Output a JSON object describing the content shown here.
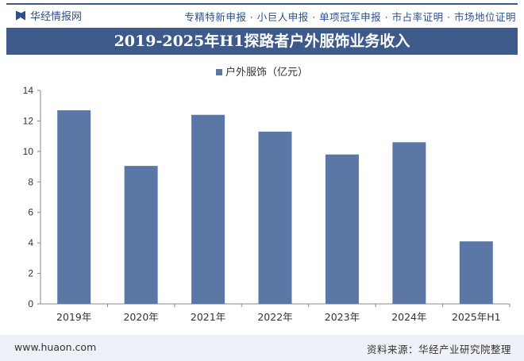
{
  "header": {
    "brand": "华经情报网",
    "services": "专精特新申报 · 小巨人申报 · 单项冠军申报 · 市占率证明 · 市场地位证明"
  },
  "footer": {
    "website": "www.huaon.com",
    "source": "资料来源：华经产业研究院整理"
  },
  "colors": {
    "bar": "#5b77a5",
    "title_bg": "#3d5a8a"
  },
  "chart_data": {
    "type": "bar",
    "title": "2019-2025年H1探路者户外服饰业务收入",
    "categories": [
      "2019年",
      "2020年",
      "2021年",
      "2022年",
      "2023年",
      "2024年",
      "2025年H1"
    ],
    "series": [
      {
        "name": "户外服饰（亿元）",
        "values": [
          12.7,
          9.05,
          12.4,
          11.3,
          9.8,
          10.6,
          4.1
        ]
      }
    ],
    "ylim": [
      0,
      14
    ],
    "yticks": [
      "0",
      "2",
      "4",
      "6",
      "8",
      "10",
      "12",
      "14"
    ],
    "grid": false,
    "legend": "top"
  }
}
